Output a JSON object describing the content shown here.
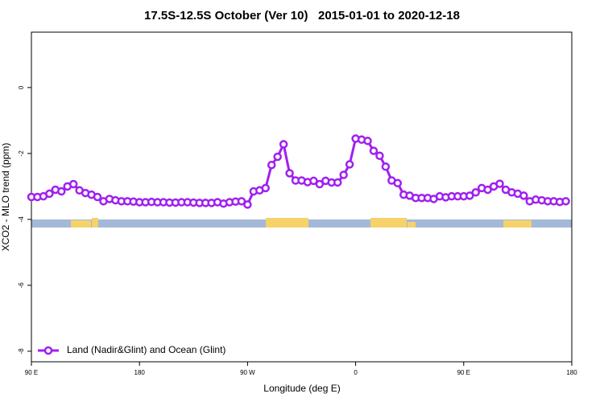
{
  "chart_data": {
    "type": "line",
    "title": "17.5S-12.5S October (Ver 10)   2015-01-01 to 2020-12-18",
    "x_label": "Longitude (deg E)",
    "y_label": "XCO2 - MLO trend (ppm)",
    "x": [
      90,
      95,
      100,
      105,
      110,
      115,
      120,
      125,
      130,
      135,
      140,
      145,
      150,
      155,
      160,
      165,
      170,
      175,
      180,
      185,
      190,
      195,
      200,
      205,
      210,
      215,
      220,
      225,
      230,
      235,
      240,
      245,
      250,
      255,
      260,
      265,
      270,
      275,
      280,
      285,
      290,
      295,
      300,
      305,
      310,
      315,
      320,
      325,
      330,
      335,
      340,
      345,
      350,
      355,
      360,
      365,
      370,
      375,
      380,
      385,
      390,
      395,
      400,
      405,
      410,
      415,
      420,
      425,
      430,
      435,
      440,
      445,
      450,
      455,
      460,
      465,
      470,
      475,
      480,
      485,
      490,
      495,
      500,
      505,
      510,
      515,
      520,
      525,
      530,
      535
    ],
    "series": [
      {
        "name": "Land (Nadir&Glint) and Ocean (Glint)",
        "color": "#a020f0",
        "values": [
          -3.32,
          -3.32,
          -3.3,
          -3.22,
          -3.1,
          -3.15,
          -3.0,
          -2.93,
          -3.12,
          -3.2,
          -3.25,
          -3.32,
          -3.45,
          -3.38,
          -3.42,
          -3.45,
          -3.45,
          -3.46,
          -3.48,
          -3.48,
          -3.47,
          -3.48,
          -3.48,
          -3.49,
          -3.49,
          -3.48,
          -3.48,
          -3.49,
          -3.5,
          -3.5,
          -3.5,
          -3.48,
          -3.52,
          -3.48,
          -3.46,
          -3.45,
          -3.55,
          -3.15,
          -3.12,
          -3.05,
          -2.35,
          -2.1,
          -1.72,
          -2.6,
          -2.82,
          -2.82,
          -2.87,
          -2.83,
          -2.93,
          -2.83,
          -2.88,
          -2.88,
          -2.65,
          -2.33,
          -1.55,
          -1.58,
          -1.62,
          -1.92,
          -2.07,
          -2.4,
          -2.82,
          -2.9,
          -3.25,
          -3.28,
          -3.35,
          -3.35,
          -3.35,
          -3.38,
          -3.3,
          -3.33,
          -3.3,
          -3.3,
          -3.3,
          -3.28,
          -3.18,
          -3.05,
          -3.1,
          -3.0,
          -2.92,
          -3.1,
          -3.18,
          -3.22,
          -3.28,
          -3.45,
          -3.4,
          -3.42,
          -3.45,
          -3.45,
          -3.47,
          -3.45
        ]
      }
    ],
    "xlim": [
      90,
      540
    ],
    "xticks": [
      {
        "value": 90,
        "label": "90 E"
      },
      {
        "value": 180,
        "label": "180"
      },
      {
        "value": 270,
        "label": "90 W"
      },
      {
        "value": 360,
        "label": "0"
      },
      {
        "value": 450,
        "label": "90 E"
      },
      {
        "value": 540,
        "label": "180"
      }
    ],
    "ylim": [
      -8.32,
      1.68
    ],
    "yticks": [
      0,
      -2,
      -4,
      -6,
      -8
    ],
    "legend": "bottomleft"
  }
}
